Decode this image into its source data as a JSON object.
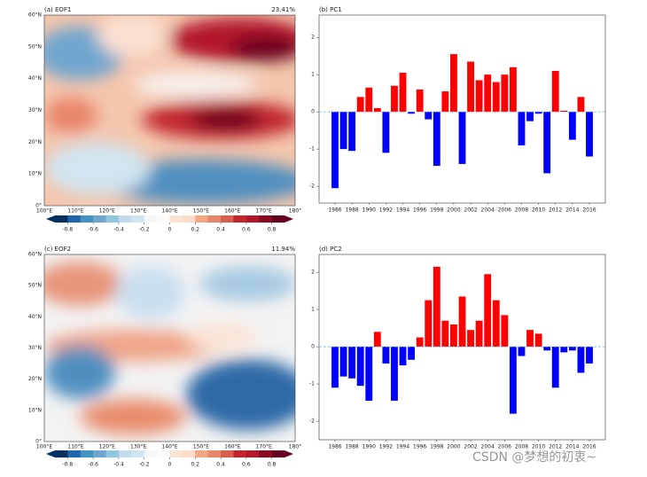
{
  "chart_data": [
    {
      "type": "map",
      "title": "(a)  EOF1",
      "explained": "23.41%",
      "xtick_labels": [
        "100°E",
        "110°E",
        "120°E",
        "130°E",
        "140°E",
        "150°E",
        "160°E",
        "170°E",
        "180°"
      ],
      "ytick_labels": [
        "0°",
        "10°N",
        "20°N",
        "30°N",
        "40°N",
        "50°N",
        "60°N"
      ],
      "colorbar_ticks": [
        -0.8,
        -0.6,
        -0.4,
        -0.2,
        0,
        0.2,
        0.4,
        0.6,
        0.8
      ],
      "colorbar_lim": [
        -0.9,
        0.9
      ]
    },
    {
      "type": "bar",
      "title": "(b)  PC1",
      "categories": [
        1986,
        null,
        1988,
        null,
        1990,
        null,
        1992,
        null,
        1994,
        null,
        1996,
        null,
        1998,
        null,
        2000,
        null,
        2002,
        null,
        2004,
        null,
        2006,
        null,
        2008,
        null,
        2010,
        null,
        2012,
        null,
        2014,
        null,
        2016
      ],
      "values": [
        -2.05,
        -1.0,
        -1.05,
        0.4,
        0.65,
        0.1,
        -1.1,
        0.7,
        1.05,
        -0.05,
        0.6,
        -0.2,
        -1.45,
        0.55,
        1.55,
        -1.4,
        1.35,
        0.85,
        1.0,
        0.8,
        1.0,
        1.2,
        -0.9,
        -0.25,
        -0.05,
        -1.65,
        1.1,
        0.03,
        -0.75,
        0.4,
        -1.2
      ],
      "positive_color": "#ff0000",
      "negative_color": "#0000ff",
      "ylim": [
        -2.45,
        2.6
      ],
      "yticks": [
        -2,
        -1,
        0,
        1,
        2
      ]
    },
    {
      "type": "map",
      "title": "(c)  EOF2",
      "explained": "11.94%",
      "xtick_labels": [
        "100°E",
        "110°E",
        "120°E",
        "130°E",
        "140°E",
        "150°E",
        "160°E",
        "170°E",
        "180°"
      ],
      "ytick_labels": [
        "0°",
        "10°N",
        "20°N",
        "30°N",
        "40°N",
        "50°N",
        "60°N"
      ],
      "colorbar_ticks": [
        -0.8,
        -0.6,
        -0.4,
        -0.2,
        0,
        0.2,
        0.4,
        0.6,
        0.8
      ],
      "colorbar_lim": [
        -0.9,
        0.9
      ]
    },
    {
      "type": "bar",
      "title": "(d)  PC2",
      "categories": [
        1986,
        null,
        1988,
        null,
        1990,
        null,
        1992,
        null,
        1994,
        null,
        1996,
        null,
        1998,
        null,
        2000,
        null,
        2002,
        null,
        2004,
        null,
        2006,
        null,
        2008,
        null,
        2010,
        null,
        2012,
        null,
        2014,
        null,
        2016
      ],
      "values": [
        -1.1,
        -0.8,
        -0.85,
        -1.05,
        -1.45,
        0.4,
        -0.45,
        -1.45,
        -0.5,
        -0.35,
        0.25,
        1.25,
        2.15,
        0.7,
        0.6,
        1.35,
        0.45,
        0.7,
        1.95,
        1.25,
        0.85,
        -1.8,
        -0.25,
        0.45,
        0.35,
        -0.1,
        -1.1,
        -0.15,
        -0.1,
        -0.7,
        -0.45
      ],
      "positive_color": "#ff0000",
      "negative_color": "#0000ff",
      "ylim": [
        -2.5,
        2.48
      ],
      "yticks": [
        -2,
        -1,
        0,
        1,
        2
      ]
    }
  ],
  "watermark": "CSDN @梦想的初衷~"
}
